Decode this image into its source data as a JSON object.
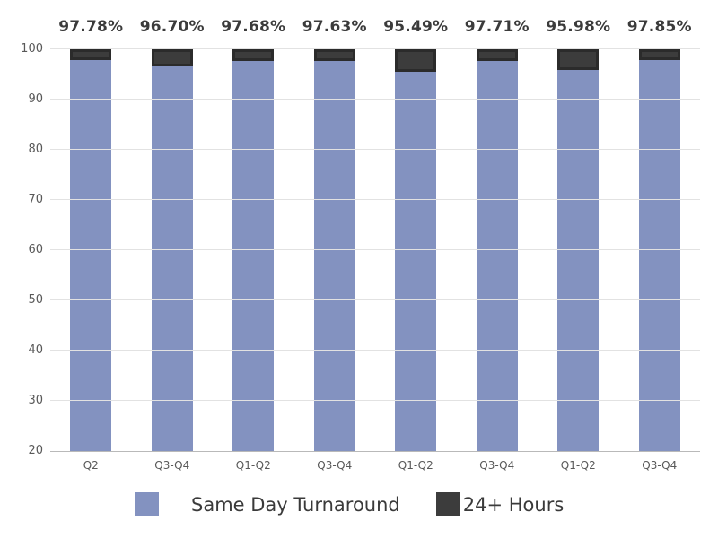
{
  "chart_data": {
    "type": "bar",
    "stacked": true,
    "title": "",
    "categories": [
      "Q2",
      "Q3-Q4",
      "Q1-Q2",
      "Q3-Q4",
      "Q1-Q2",
      "Q3-Q4",
      "Q1-Q2",
      "Q3-Q4"
    ],
    "series": [
      {
        "name": "Same Day Turnaround",
        "color": "#8392c0",
        "values": [
          97.78,
          96.7,
          97.68,
          97.63,
          95.49,
          97.71,
          95.98,
          97.85
        ]
      },
      {
        "name": "24+ Hours",
        "color": "#3c3c3c",
        "values": [
          2.22,
          3.3,
          2.32,
          2.37,
          4.51,
          2.29,
          4.02,
          2.15
        ]
      }
    ],
    "bar_labels": [
      "97.78%",
      "96.70%",
      "97.68%",
      "97.63%",
      "95.49%",
      "97.71%",
      "95.98%",
      "97.85%"
    ],
    "xlabel": "",
    "ylabel": "",
    "ylim": [
      20,
      100
    ],
    "yticks": [
      20,
      30,
      40,
      50,
      60,
      70,
      80,
      90,
      100
    ],
    "grid": true,
    "legend_position": "bottom"
  },
  "legend": {
    "items": [
      {
        "label": "Same Day Turnaround",
        "color": "#8392c0"
      },
      {
        "label": "24+ Hours",
        "color": "#3c3c3c"
      }
    ]
  },
  "colors": {
    "background": "#ffffff",
    "gridline": "#e2e2e2",
    "axis_line": "#b9b9b9",
    "tick_text": "#595959",
    "value_label_text": "#3b3b3b",
    "series_same_day": "#8392c0",
    "series_24_hours": "#3c3c3c"
  }
}
